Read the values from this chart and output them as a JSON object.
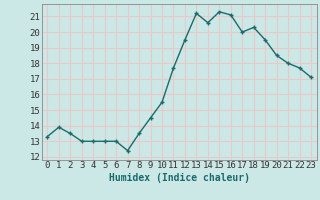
{
  "x": [
    0,
    1,
    2,
    3,
    4,
    5,
    6,
    7,
    8,
    9,
    10,
    11,
    12,
    13,
    14,
    15,
    16,
    17,
    18,
    19,
    20,
    21,
    22,
    23
  ],
  "y": [
    13.3,
    13.9,
    13.5,
    13.0,
    13.0,
    13.0,
    13.0,
    12.4,
    13.5,
    14.5,
    15.5,
    17.7,
    19.5,
    21.2,
    20.6,
    21.3,
    21.1,
    20.0,
    20.3,
    19.5,
    18.5,
    18.0,
    17.7,
    17.1
  ],
  "xlabel": "Humidex (Indice chaleur)",
  "ylim": [
    11.8,
    21.8
  ],
  "xlim": [
    -0.5,
    23.5
  ],
  "yticks": [
    12,
    13,
    14,
    15,
    16,
    17,
    18,
    19,
    20,
    21
  ],
  "xticks": [
    0,
    1,
    2,
    3,
    4,
    5,
    6,
    7,
    8,
    9,
    10,
    11,
    12,
    13,
    14,
    15,
    16,
    17,
    18,
    19,
    20,
    21,
    22,
    23
  ],
  "line_color": "#1a6b6b",
  "marker_color": "#1a6b6b",
  "bg_color": "#cce8e6",
  "grid_color": "#e8c8c8",
  "axis_color": "#888888",
  "tick_label_color": "#333333",
  "xlabel_color": "#1a6b6b",
  "xlabel_fontsize": 7,
  "tick_fontsize": 6.5,
  "line_width": 1.0,
  "marker_size": 2.5
}
